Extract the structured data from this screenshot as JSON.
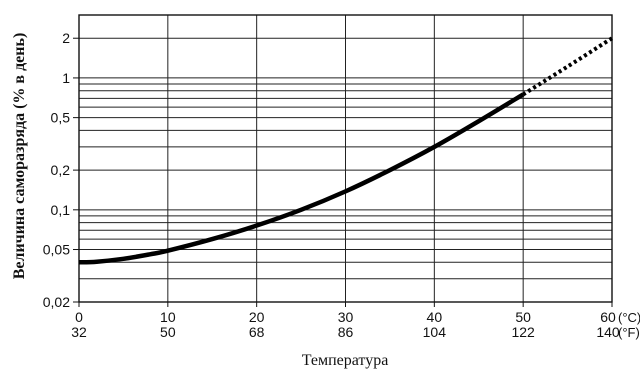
{
  "chart_data": {
    "type": "line",
    "title": "",
    "xlabel": "Температура",
    "ylabel": "Величина саморазряда (% в день)",
    "y_scale": "log",
    "ylim": [
      0.02,
      3
    ],
    "xlim": [
      0,
      60
    ],
    "x_ticks_c": [
      "0",
      "10",
      "20",
      "30",
      "40",
      "50",
      "60"
    ],
    "x_ticks_f": [
      "32",
      "50",
      "68",
      "86",
      "104",
      "122",
      "140"
    ],
    "x_unit_c": "(°C)",
    "x_unit_f": "(°F)",
    "y_ticks": [
      "0,02",
      "0,05",
      "0,1",
      "0,2",
      "0,5",
      "1",
      "2"
    ],
    "grid": true,
    "series": [
      {
        "x": [
          0,
          2,
          5,
          8,
          10,
          15,
          20,
          25,
          30,
          35,
          40,
          45,
          50
        ],
        "y": [
          0.04,
          0.0404,
          0.0425,
          0.046,
          0.049,
          0.06,
          0.076,
          0.1,
          0.138,
          0.2,
          0.3,
          0.47,
          0.75
        ]
      },
      {
        "x": [
          50,
          55,
          60
        ],
        "y": [
          0.75,
          1.22,
          2.0
        ],
        "style": "dotted"
      }
    ]
  }
}
